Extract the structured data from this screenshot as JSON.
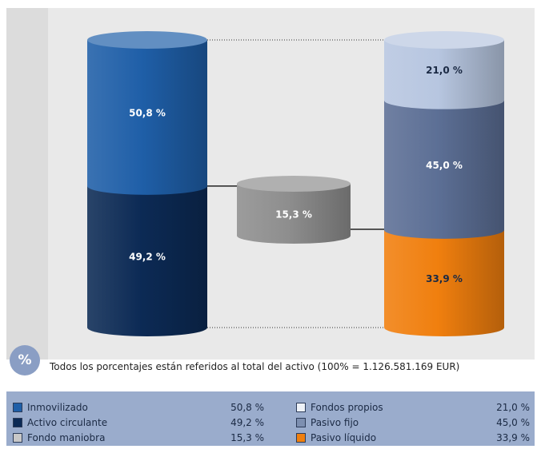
{
  "chart_data": {
    "type": "bar",
    "title": "",
    "columns": [
      {
        "segments": [
          {
            "name": "Inmovilizado",
            "value": 50.8,
            "label": "50,8 %",
            "color": "#1f5fa8",
            "text_color": "#ffffff"
          },
          {
            "name": "Activo circulante",
            "value": 49.2,
            "label": "49,2 %",
            "color": "#0c2a55",
            "text_color": "#ffffff"
          }
        ]
      },
      {
        "segments": [
          {
            "name": "Fondo maniobra",
            "value": 15.3,
            "label": "15,3 %",
            "color": "#8e8e8e",
            "text_color": "#ffffff"
          }
        ]
      },
      {
        "segments": [
          {
            "name": "Fondos propios",
            "value": 21.0,
            "label": "21,0 %",
            "color": "#b7c6e0",
            "text_color": "#1b2a44"
          },
          {
            "name": "Pasivo fijo",
            "value": 45.0,
            "label": "45,0 %",
            "color": "#5c6f95",
            "text_color": "#ffffff"
          },
          {
            "name": "Pasivo líquido",
            "value": 33.9,
            "label": "33,9 %",
            "color": "#f07f0e",
            "text_color": "#1b2a44"
          }
        ]
      }
    ]
  },
  "badge": {
    "symbol": "%"
  },
  "note": "Todos los porcentajes están referidos al total del activo (100% = 1.126.581.169 EUR)",
  "legend": {
    "left": [
      {
        "name": "Inmovilizado",
        "value": "50,8 %",
        "color": "#1f5fa8"
      },
      {
        "name": "Activo circulante",
        "value": "49,2 %",
        "color": "#0c2a55"
      },
      {
        "name": "Fondo maniobra",
        "value": "15,3 %",
        "color": "#c8c8c8"
      }
    ],
    "right": [
      {
        "name": "Fondos propios",
        "value": "21,0 %",
        "color": "#eef2f8"
      },
      {
        "name": "Pasivo fijo",
        "value": "45,0 %",
        "color": "#7d8fb0"
      },
      {
        "name": "Pasivo líquido",
        "value": "33,9 %",
        "color": "#f07f0e"
      }
    ]
  }
}
